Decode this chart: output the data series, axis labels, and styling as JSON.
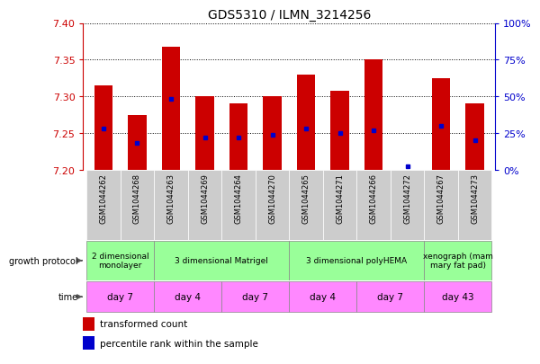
{
  "title": "GDS5310 / ILMN_3214256",
  "samples": [
    "GSM1044262",
    "GSM1044268",
    "GSM1044263",
    "GSM1044269",
    "GSM1044264",
    "GSM1044270",
    "GSM1044265",
    "GSM1044271",
    "GSM1044266",
    "GSM1044272",
    "GSM1044267",
    "GSM1044273"
  ],
  "transformed_count": [
    7.315,
    7.275,
    7.368,
    7.3,
    7.29,
    7.3,
    7.33,
    7.308,
    7.35,
    7.2,
    7.325,
    7.29
  ],
  "percentile_rank": [
    28,
    18,
    48,
    22,
    22,
    24,
    28,
    25,
    27,
    2,
    30,
    20
  ],
  "ylim_left": [
    7.2,
    7.4
  ],
  "ylim_right": [
    0,
    100
  ],
  "left_yticks": [
    7.2,
    7.25,
    7.3,
    7.35,
    7.4
  ],
  "right_yticks": [
    0,
    25,
    50,
    75,
    100
  ],
  "left_color": "#cc0000",
  "right_color": "#0000cc",
  "bar_color": "#cc0000",
  "dot_color": "#0000cc",
  "growth_protocol_groups": [
    {
      "label": "2 dimensional\nmonolayer",
      "start": 0,
      "end": 2,
      "color": "#99ff99"
    },
    {
      "label": "3 dimensional Matrigel",
      "start": 2,
      "end": 6,
      "color": "#99ff99"
    },
    {
      "label": "3 dimensional polyHEMA",
      "start": 6,
      "end": 10,
      "color": "#99ff99"
    },
    {
      "label": "xenograph (mam\nmary fat pad)",
      "start": 10,
      "end": 12,
      "color": "#99ff99"
    }
  ],
  "time_groups": [
    {
      "label": "day 7",
      "start": 0,
      "end": 2,
      "color": "#ff88ff"
    },
    {
      "label": "day 4",
      "start": 2,
      "end": 4,
      "color": "#ff88ff"
    },
    {
      "label": "day 7",
      "start": 4,
      "end": 6,
      "color": "#ff88ff"
    },
    {
      "label": "day 4",
      "start": 6,
      "end": 8,
      "color": "#ff88ff"
    },
    {
      "label": "day 7",
      "start": 8,
      "end": 10,
      "color": "#ff88ff"
    },
    {
      "label": "day 43",
      "start": 10,
      "end": 12,
      "color": "#ff88ff"
    }
  ],
  "sample_bg_color": "#cccccc",
  "bar_color2": "#cc0000",
  "dot_color2": "#0000cc"
}
